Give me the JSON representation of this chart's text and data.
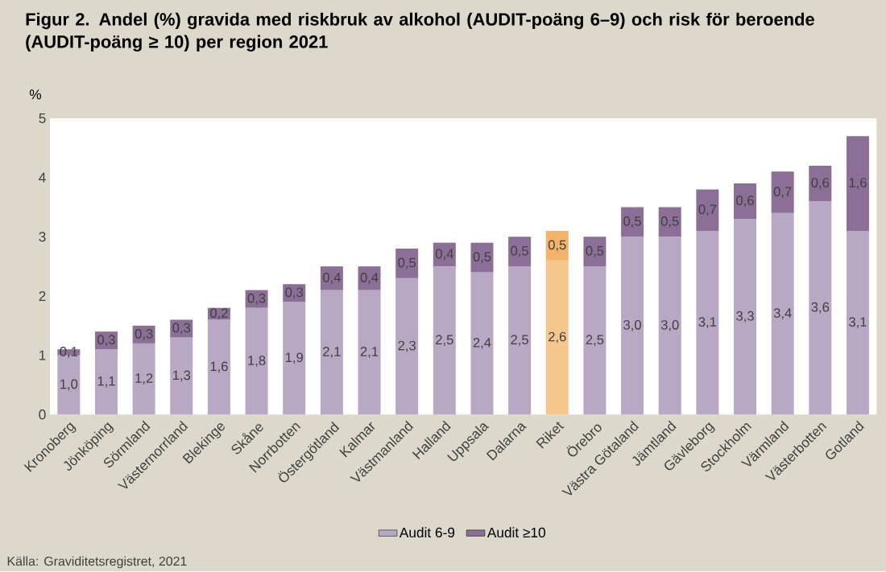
{
  "chart_data": {
    "type": "bar",
    "title": "Figur 2. Andel (%) gravida med riskbruk av alkohol (AUDIT-poäng 6–9) och risk för beroende (AUDIT-poäng ≥ 10) per region 2021",
    "ylabel": "%",
    "categories": [
      "Kronoberg",
      "Jönköping",
      "Sörmland",
      "Västernorrland",
      "Blekinge",
      "Skåne",
      "Norrbotten",
      "Östergötland",
      "Kalmar",
      "Västmanland",
      "Halland",
      "Uppsala",
      "Dalarna",
      "Riket",
      "Örebro",
      "Västra Götaland",
      "Jämtland",
      "Gävleborg",
      "Stockholm",
      "Värmland",
      "Västerbotten",
      "Gotland"
    ],
    "series": [
      {
        "name": "Audit 6-9",
        "color": "#b9a8c4",
        "colors": [
          "#b9a8c4",
          "#b9a8c4",
          "#b9a8c4",
          "#b9a8c4",
          "#b9a8c4",
          "#b9a8c4",
          "#b9a8c4",
          "#b9a8c4",
          "#b9a8c4",
          "#b9a8c4",
          "#b9a8c4",
          "#b9a8c4",
          "#b9a8c4",
          "#f5c78e",
          "#b9a8c4",
          "#b9a8c4",
          "#b9a8c4",
          "#b9a8c4",
          "#b9a8c4",
          "#b9a8c4",
          "#b9a8c4",
          "#b9a8c4"
        ],
        "values": [
          1.0,
          1.1,
          1.2,
          1.3,
          1.6,
          1.8,
          1.9,
          2.1,
          2.1,
          2.3,
          2.5,
          2.4,
          2.5,
          2.6,
          2.5,
          3.0,
          3.0,
          3.1,
          3.3,
          3.4,
          3.6,
          3.1
        ],
        "value_labels": [
          "1,0",
          "1,1",
          "1,2",
          "1,3",
          "1,6",
          "1,8",
          "1,9",
          "2,1",
          "2,1",
          "2,3",
          "2,5",
          "2,4",
          "2,5",
          "2,6",
          "2,5",
          "3,0",
          "3,0",
          "3,1",
          "3,3",
          "3,4",
          "3,6",
          "3,1"
        ]
      },
      {
        "name": "Audit ≥10",
        "color": "#8b6f97",
        "colors": [
          "#8b6f97",
          "#8b6f97",
          "#8b6f97",
          "#8b6f97",
          "#8b6f97",
          "#8b6f97",
          "#8b6f97",
          "#8b6f97",
          "#8b6f97",
          "#8b6f97",
          "#8b6f97",
          "#8b6f97",
          "#8b6f97",
          "#f2b36a",
          "#8b6f97",
          "#8b6f97",
          "#8b6f97",
          "#8b6f97",
          "#8b6f97",
          "#8b6f97",
          "#8b6f97",
          "#8b6f97"
        ],
        "values": [
          0.1,
          0.3,
          0.3,
          0.3,
          0.2,
          0.3,
          0.3,
          0.4,
          0.4,
          0.5,
          0.4,
          0.5,
          0.5,
          0.5,
          0.5,
          0.5,
          0.5,
          0.7,
          0.6,
          0.7,
          0.6,
          1.6
        ],
        "value_labels": [
          "0,1",
          "0,3",
          "0,3",
          "0,3",
          "0,2",
          "0,3",
          "0,3",
          "0,4",
          "0,4",
          "0,5",
          "0,4",
          "0,5",
          "0,5",
          "0,5",
          "0,5",
          "0,5",
          "0,5",
          "0,7",
          "0,6",
          "0,7",
          "0,6",
          "1,6"
        ]
      }
    ],
    "stacked": true,
    "ylim": [
      0,
      5
    ],
    "yticks": [
      0,
      1,
      2,
      3,
      4,
      5
    ],
    "legend": "bottom",
    "annotations": [
      "Källa: Graviditetsregistret, 2021"
    ]
  }
}
